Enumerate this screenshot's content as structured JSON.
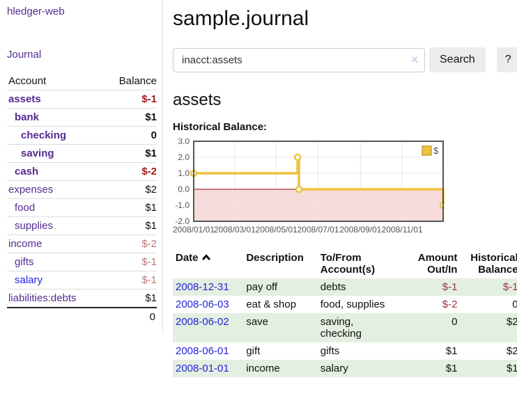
{
  "app": {
    "brand": "hledger-web",
    "nav_journal": "Journal"
  },
  "sidebar": {
    "accounts_header": {
      "account": "Account",
      "balance": "Balance"
    },
    "accounts": [
      {
        "name": "assets",
        "indent": 1,
        "balance": "$-1",
        "bold": true,
        "balance_style": "neg-strong"
      },
      {
        "name": "bank",
        "indent": 2,
        "balance": "$1",
        "bold": true,
        "balance_style": "pos"
      },
      {
        "name": "checking",
        "indent": 3,
        "balance": "0",
        "bold": true,
        "balance_style": "pos"
      },
      {
        "name": "saving",
        "indent": 3,
        "balance": "$1",
        "bold": true,
        "balance_style": "pos"
      },
      {
        "name": "cash",
        "indent": 2,
        "balance": "$-2",
        "bold": true,
        "balance_style": "neg-strong"
      },
      {
        "name": "expenses",
        "indent": 1,
        "balance": "$2",
        "bold": false,
        "balance_style": "pos"
      },
      {
        "name": "food",
        "indent": 2,
        "balance": "$1",
        "bold": false,
        "balance_style": "pos"
      },
      {
        "name": "supplies",
        "indent": 2,
        "balance": "$1",
        "bold": false,
        "balance_style": "pos"
      },
      {
        "name": "income",
        "indent": 1,
        "balance": "$-2",
        "bold": false,
        "balance_style": "neg-muted"
      },
      {
        "name": "gifts",
        "indent": 2,
        "balance": "$-1",
        "bold": false,
        "balance_style": "neg-muted"
      },
      {
        "name": "salary",
        "indent": 2,
        "balance": "$-1",
        "bold": false,
        "balance_style": "neg-muted",
        "link_color": "blue"
      },
      {
        "name": "liabilities:debts",
        "indent": 1,
        "balance": "$1",
        "bold": false,
        "balance_style": "pos"
      }
    ],
    "total": "0"
  },
  "header": {
    "title": "sample.journal"
  },
  "search": {
    "value": "inacct:assets",
    "clear_icon": "×",
    "search_label": "Search",
    "help_label": "?"
  },
  "account_page": {
    "title": "assets",
    "chart_label": "Historical Balance:"
  },
  "chart_data": {
    "type": "line",
    "step": true,
    "title": "Historical Balance",
    "series": [
      {
        "name": "$",
        "color": "#edc240",
        "points": [
          [
            "2008-01-01",
            1
          ],
          [
            "2008-06-01",
            2
          ],
          [
            "2008-06-03",
            0
          ],
          [
            "2008-12-31",
            -1
          ]
        ]
      }
    ],
    "x_ticks": [
      "2008/01/01",
      "2008/03/01",
      "2008/05/01",
      "2008/07/01",
      "2008/09/01",
      "2008/11/01"
    ],
    "y_ticks": [
      3.0,
      2.0,
      1.0,
      0.0,
      -1.0,
      -2.0
    ],
    "ylim": [
      -2,
      3
    ],
    "xlim": [
      "2008-01-01",
      "2008-12-31"
    ],
    "grid": true,
    "legend": {
      "label": "$",
      "position": "top-right"
    },
    "negative_region_fill": "#f8dcdc",
    "zero_line_color": "#8b0000",
    "border_color": "#545454"
  },
  "register": {
    "columns": {
      "date": "Date",
      "description": "Description",
      "account_line1": "To/From",
      "account_line2": "Account(s)",
      "amount_line1": "Amount",
      "amount_line2": "Out/In",
      "balance_line1": "Historical",
      "balance_line2": "Balance"
    },
    "rows": [
      {
        "date": "2008-12-31",
        "description": "pay off",
        "accounts": "debts",
        "amount": "$-1",
        "balance": "$-1"
      },
      {
        "date": "2008-06-03",
        "description": "eat & shop",
        "accounts": "food, supplies",
        "amount": "$-2",
        "balance": "0"
      },
      {
        "date": "2008-06-02",
        "description": "save",
        "accounts": "saving, checking",
        "amount": "0",
        "balance": "$2"
      },
      {
        "date": "2008-06-01",
        "description": "gift",
        "accounts": "gifts",
        "amount": "$1",
        "balance": "$2"
      },
      {
        "date": "2008-01-01",
        "description": "income",
        "accounts": "salary",
        "amount": "$1",
        "balance": "$1"
      }
    ]
  },
  "colors": {
    "accent_purple": "#552a91",
    "link_blue": "#2323dc",
    "negative_strong": "#991b1b",
    "negative_muted": "#b87878",
    "negative_table": "#a03535",
    "row_stripe_green": "#e3efe0",
    "chart_line_yellow": "#edc240",
    "chart_negative_fill": "#f8dcdc",
    "chart_zero_line": "#8b0000",
    "chart_border": "#545454"
  }
}
